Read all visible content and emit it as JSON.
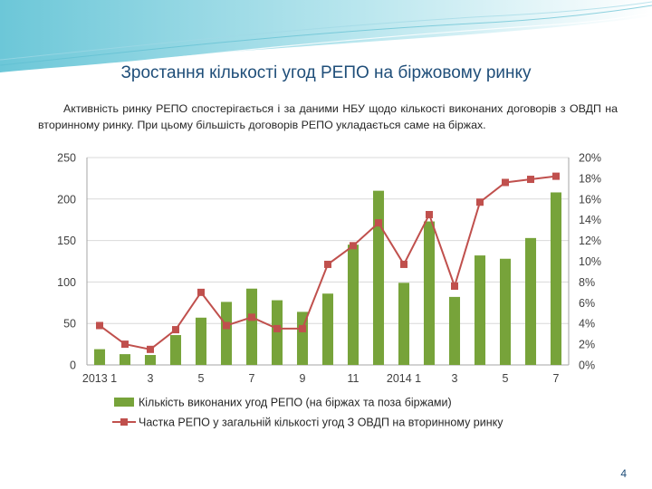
{
  "slide": {
    "title": "Зростання кількості угод РЕПО на біржовому ринку",
    "body": "Активність ринку РЕПО спостерігається і за даними НБУ щодо кількості виконаних договорів з ОВДП на вторинному ринку. При цьому більшість договорів РЕПО укладається саме на біржах.",
    "page_number": "4"
  },
  "colors": {
    "bar": "#77a33a",
    "line": "#c0504d",
    "grid": "#d9d9d9",
    "axis_text": "#404040",
    "title": "#1f4e79",
    "header_band": "#7fd0de"
  },
  "chart_data": {
    "type": "bar+line",
    "categories": [
      "2013 1",
      "2",
      "3",
      "4",
      "5",
      "6",
      "7",
      "8",
      "9",
      "10",
      "11",
      "12",
      "2014 1",
      "2",
      "3",
      "4",
      "5",
      "6",
      "7"
    ],
    "x_tick_labels": [
      "2013 1",
      "",
      "3",
      "",
      "5",
      "",
      "7",
      "",
      "9",
      "",
      "11",
      "",
      "2014 1",
      "",
      "3",
      "",
      "5",
      "",
      "7"
    ],
    "series": [
      {
        "name": "Кількість виконаних угод РЕПО (на біржах та поза біржами)",
        "type": "bar",
        "axis": "left",
        "values": [
          19,
          13,
          12,
          36,
          57,
          76,
          92,
          78,
          64,
          86,
          145,
          210,
          99,
          173,
          82,
          132,
          128,
          153,
          208
        ]
      },
      {
        "name": "Частка РЕПО у загальній кількості угод З ОВДП на вторинному ринку",
        "type": "line",
        "axis": "right",
        "values": [
          3.8,
          2.0,
          1.5,
          3.4,
          7.0,
          3.8,
          4.6,
          3.5,
          3.5,
          9.7,
          11.5,
          13.7,
          9.7,
          14.5,
          7.6,
          15.7,
          17.6,
          17.9,
          18.2
        ]
      }
    ],
    "y_left": {
      "min": 0,
      "max": 250,
      "ticks": [
        "0",
        "50",
        "100",
        "150",
        "200",
        "250"
      ]
    },
    "y_right": {
      "min": 0,
      "max": 20,
      "ticks": [
        "0%",
        "2%",
        "4%",
        "6%",
        "8%",
        "10%",
        "12%",
        "14%",
        "16%",
        "18%",
        "20%"
      ]
    },
    "grid": true,
    "legend_position": "bottom"
  }
}
